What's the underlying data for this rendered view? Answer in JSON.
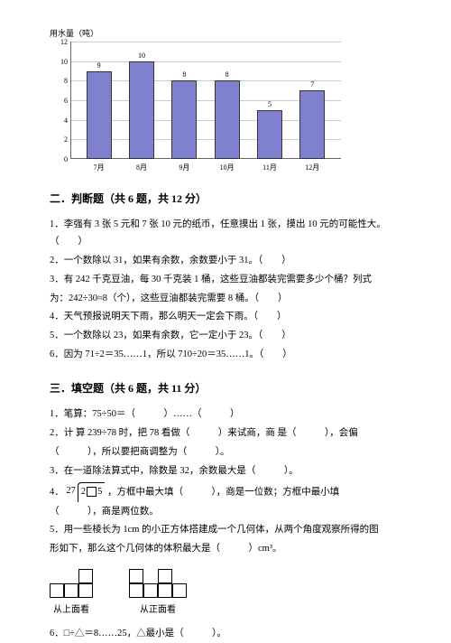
{
  "chart": {
    "ylabel": "用水量（吨）",
    "ylim_max": 12,
    "yticks": [
      0,
      2,
      4,
      6,
      8,
      10,
      12
    ],
    "bar_color": "#8080d0",
    "grid_color": "#cccccc",
    "categories": [
      "7月",
      "8月",
      "9月",
      "10月",
      "11月",
      "12月"
    ],
    "values": [
      9,
      10,
      8,
      8,
      5,
      7
    ]
  },
  "section2": {
    "title": "二．判断题（共 6 题，共 12 分）",
    "q1": "1．李强有 3 张 5 元和 7 张 10 元的纸币，任意摸出 1 张，摸出 10 元的可能性大。（　　）",
    "q2": "2．一个数除以 31，如果有余数，余数要小于 31。（　　）",
    "q3a": "3．有 242 千克豆油，每 30 千克装 1 桶，这些豆油都装完需要多少个桶？列式",
    "q3b": "为：242÷30≈8（个），这些豆油都装完需要 8 桶。（　　）",
    "q4": "4．天气预报说明天下雨，那么明天一定会下雨。（　　）",
    "q5": "5．一个数除以 23，如果有余数，它一定小于 23。（　　）",
    "q6": "6．因为 71÷2＝35……1，所以 710÷20＝35……1。（　　）"
  },
  "section3": {
    "title": "三．填空题（共 6 题，共 11 分）",
    "q1": "1．笔算：75÷50＝（　　　）……（　　　）",
    "q2a": "2．计 算 239÷78 时，把 78 看做（　　　）来试商，商 是（　　　），会偏",
    "q2b": "（　　　），所以要把商调整为（　　　）。",
    "q3": "3．在一道除法算式中，除数是 32，余数最大是（　　　）。",
    "q4a": "4．",
    "q4divisor": "27",
    "q4dividend_prefix": "2",
    "q4dividend_suffix": "5",
    "q4b": "，方框中最大填（　　　），商是一位数；方框中最小填",
    "q4c": "（　　　），商是两位数。",
    "q5a": "5．用一些棱长为 1cm 的小正方体搭建成一个几何体，从两个角度观察所得的图",
    "q5b": "形如下，那么这个几何体的体积最大是（　　　）cm³。",
    "view_top": "从上面看",
    "view_front": "从正面看",
    "q6": "6．□÷△＝8……25，△最小是（　　　）。"
  }
}
